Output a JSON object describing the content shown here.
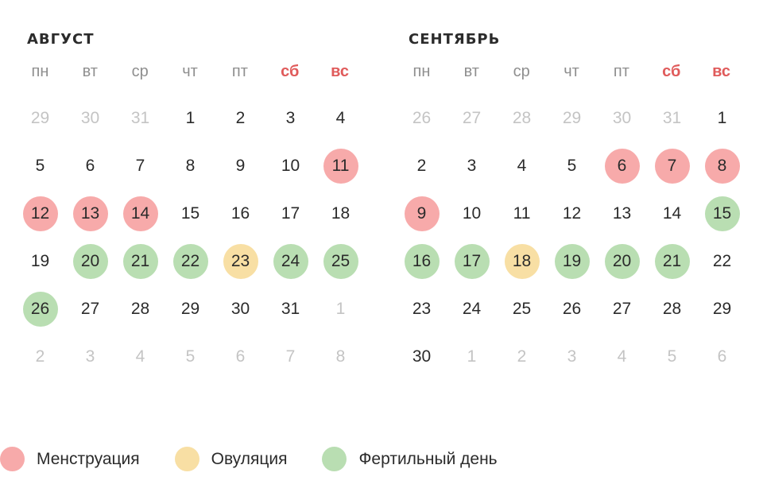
{
  "weekdays": [
    "пн",
    "вт",
    "ср",
    "чт",
    "пт",
    "сб",
    "вс"
  ],
  "legend": {
    "menstruation": "Менструация",
    "ovulation": "Овуляция",
    "fertile": "Фертильный день"
  },
  "colors": {
    "menstruation": "#f7aaaa",
    "ovulation": "#f8dfa4",
    "fertile": "#b9deb2",
    "weekend": "#e05b5b",
    "other_month": "#c4c4c4"
  },
  "months": [
    {
      "title": "АВГУСТ",
      "days": [
        {
          "d": "29",
          "t": "other"
        },
        {
          "d": "30",
          "t": "other"
        },
        {
          "d": "31",
          "t": "other"
        },
        {
          "d": "1",
          "t": ""
        },
        {
          "d": "2",
          "t": ""
        },
        {
          "d": "3",
          "t": ""
        },
        {
          "d": "4",
          "t": ""
        },
        {
          "d": "5",
          "t": ""
        },
        {
          "d": "6",
          "t": ""
        },
        {
          "d": "7",
          "t": ""
        },
        {
          "d": "8",
          "t": ""
        },
        {
          "d": "9",
          "t": ""
        },
        {
          "d": "10",
          "t": ""
        },
        {
          "d": "11",
          "t": "menstruation"
        },
        {
          "d": "12",
          "t": "menstruation"
        },
        {
          "d": "13",
          "t": "menstruation"
        },
        {
          "d": "14",
          "t": "menstruation"
        },
        {
          "d": "15",
          "t": ""
        },
        {
          "d": "16",
          "t": ""
        },
        {
          "d": "17",
          "t": ""
        },
        {
          "d": "18",
          "t": ""
        },
        {
          "d": "19",
          "t": ""
        },
        {
          "d": "20",
          "t": "fertile"
        },
        {
          "d": "21",
          "t": "fertile"
        },
        {
          "d": "22",
          "t": "fertile"
        },
        {
          "d": "23",
          "t": "ovulation"
        },
        {
          "d": "24",
          "t": "fertile"
        },
        {
          "d": "25",
          "t": "fertile"
        },
        {
          "d": "26",
          "t": "fertile"
        },
        {
          "d": "27",
          "t": ""
        },
        {
          "d": "28",
          "t": ""
        },
        {
          "d": "29",
          "t": ""
        },
        {
          "d": "30",
          "t": ""
        },
        {
          "d": "31",
          "t": ""
        },
        {
          "d": "1",
          "t": "other"
        },
        {
          "d": "2",
          "t": "other"
        },
        {
          "d": "3",
          "t": "other"
        },
        {
          "d": "4",
          "t": "other"
        },
        {
          "d": "5",
          "t": "other"
        },
        {
          "d": "6",
          "t": "other"
        },
        {
          "d": "7",
          "t": "other"
        },
        {
          "d": "8",
          "t": "other"
        }
      ]
    },
    {
      "title": "СЕНТЯБРЬ",
      "days": [
        {
          "d": "26",
          "t": "other"
        },
        {
          "d": "27",
          "t": "other"
        },
        {
          "d": "28",
          "t": "other"
        },
        {
          "d": "29",
          "t": "other"
        },
        {
          "d": "30",
          "t": "other"
        },
        {
          "d": "31",
          "t": "other"
        },
        {
          "d": "1",
          "t": ""
        },
        {
          "d": "2",
          "t": ""
        },
        {
          "d": "3",
          "t": ""
        },
        {
          "d": "4",
          "t": ""
        },
        {
          "d": "5",
          "t": ""
        },
        {
          "d": "6",
          "t": "menstruation"
        },
        {
          "d": "7",
          "t": "menstruation"
        },
        {
          "d": "8",
          "t": "menstruation"
        },
        {
          "d": "9",
          "t": "menstruation"
        },
        {
          "d": "10",
          "t": ""
        },
        {
          "d": "11",
          "t": ""
        },
        {
          "d": "12",
          "t": ""
        },
        {
          "d": "13",
          "t": ""
        },
        {
          "d": "14",
          "t": ""
        },
        {
          "d": "15",
          "t": "fertile"
        },
        {
          "d": "16",
          "t": "fertile"
        },
        {
          "d": "17",
          "t": "fertile"
        },
        {
          "d": "18",
          "t": "ovulation"
        },
        {
          "d": "19",
          "t": "fertile"
        },
        {
          "d": "20",
          "t": "fertile"
        },
        {
          "d": "21",
          "t": "fertile"
        },
        {
          "d": "22",
          "t": ""
        },
        {
          "d": "23",
          "t": ""
        },
        {
          "d": "24",
          "t": ""
        },
        {
          "d": "25",
          "t": ""
        },
        {
          "d": "26",
          "t": ""
        },
        {
          "d": "27",
          "t": ""
        },
        {
          "d": "28",
          "t": ""
        },
        {
          "d": "29",
          "t": ""
        },
        {
          "d": "30",
          "t": ""
        },
        {
          "d": "1",
          "t": "other"
        },
        {
          "d": "2",
          "t": "other"
        },
        {
          "d": "3",
          "t": "other"
        },
        {
          "d": "4",
          "t": "other"
        },
        {
          "d": "5",
          "t": "other"
        },
        {
          "d": "6",
          "t": "other"
        }
      ]
    }
  ]
}
